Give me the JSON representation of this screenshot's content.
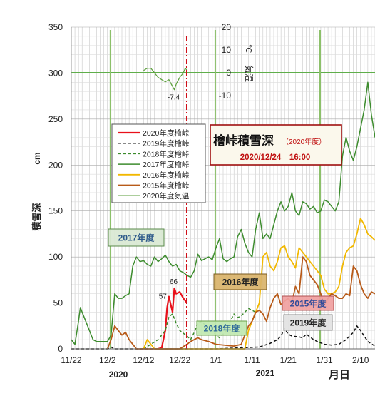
{
  "chart_data": {
    "type": "line",
    "title": "檜峠積雪深",
    "subtitle": "（2020年度）",
    "timestamp": "2020/12/24　16:00",
    "ylabel_primary": "積雪深",
    "ylabel_unit": "cm",
    "ylabel_secondary": "気温",
    "ylabel_secondary_unit": "℃",
    "xlabel": "月日",
    "year_labels": [
      "2020",
      "2021"
    ],
    "ylim": [
      0,
      350
    ],
    "y2lim": [
      -30,
      20
    ],
    "x_start_day": 0,
    "x_end_day": 84,
    "y_ticks": [
      "0",
      "50",
      "100",
      "150",
      "200",
      "250",
      "300",
      "350"
    ],
    "y2_ticks": [
      "20",
      "10",
      "0",
      "-10"
    ],
    "x_ticks": [
      {
        "label": "11/22",
        "day": 0
      },
      {
        "label": "12/2",
        "day": 10
      },
      {
        "label": "12/12",
        "day": 20
      },
      {
        "label": "12/22",
        "day": 30
      },
      {
        "label": "1/1",
        "day": 40
      },
      {
        "label": "1/11",
        "day": 50
      },
      {
        "label": "1/21",
        "day": 60
      },
      {
        "label": "1/31",
        "day": 70
      },
      {
        "label": "2/10",
        "day": 80
      }
    ],
    "current_day": 32,
    "year_markers": [
      "2017年度",
      "2016年度",
      "2015年度",
      "2018年度",
      "2019年度"
    ],
    "annotations": [
      "57",
      "66",
      "-7.4"
    ],
    "series": [
      {
        "name": "2020年度檜峠",
        "color": "#e8101a",
        "dash": "",
        "width": 2.2,
        "points": [
          [
            24,
            0
          ],
          [
            25,
            1
          ],
          [
            26,
            20
          ],
          [
            26.5,
            45
          ],
          [
            27,
            57
          ],
          [
            27.3,
            52
          ],
          [
            28,
            40
          ],
          [
            28.5,
            66
          ],
          [
            29,
            60
          ],
          [
            30,
            62
          ],
          [
            31,
            55
          ],
          [
            32,
            50
          ]
        ]
      },
      {
        "name": "2019年度檜峠",
        "color": "#111111",
        "dash": "4,3",
        "width": 1.5,
        "points": [
          [
            0,
            0
          ],
          [
            10,
            0
          ],
          [
            11,
            2
          ],
          [
            12,
            0
          ],
          [
            20,
            0
          ],
          [
            40,
            0
          ],
          [
            52,
            2
          ],
          [
            55,
            6
          ],
          [
            57,
            10
          ],
          [
            58,
            14
          ],
          [
            59,
            22
          ],
          [
            60,
            16
          ],
          [
            61,
            14
          ],
          [
            63,
            13
          ],
          [
            64,
            12
          ],
          [
            65,
            16
          ],
          [
            66,
            13
          ],
          [
            67,
            10
          ],
          [
            68,
            8
          ],
          [
            70,
            5
          ],
          [
            72,
            4
          ],
          [
            74,
            5
          ],
          [
            76,
            10
          ],
          [
            78,
            18
          ],
          [
            79,
            25
          ],
          [
            80,
            20
          ],
          [
            82,
            8
          ],
          [
            84,
            3
          ]
        ]
      },
      {
        "name": "2018年度檜峠",
        "color": "#3a8a2a",
        "dash": "4,3",
        "width": 1.5,
        "points": [
          [
            20,
            0
          ],
          [
            22,
            5
          ],
          [
            24,
            10
          ],
          [
            26,
            20
          ],
          [
            27,
            35
          ],
          [
            28,
            38
          ],
          [
            29,
            28
          ],
          [
            30,
            20
          ],
          [
            32,
            14
          ],
          [
            33,
            10
          ],
          [
            34,
            18
          ],
          [
            35,
            28
          ],
          [
            36,
            30
          ],
          [
            37,
            26
          ],
          [
            38,
            22
          ],
          [
            39,
            20
          ],
          [
            40,
            15
          ],
          [
            41,
            12
          ],
          [
            43,
            20
          ],
          [
            44,
            30
          ],
          [
            45,
            38
          ],
          [
            46,
            34
          ],
          [
            47,
            36
          ],
          [
            48,
            40
          ],
          [
            49,
            44
          ],
          [
            50,
            42
          ],
          [
            51,
            40
          ]
        ]
      },
      {
        "name": "2017年度檜峠",
        "color": "#3d8c2e",
        "dash": "",
        "width": 1.5,
        "points": [
          [
            0,
            10
          ],
          [
            1,
            5
          ],
          [
            2,
            30
          ],
          [
            2.5,
            45
          ],
          [
            3,
            40
          ],
          [
            4,
            30
          ],
          [
            5,
            20
          ],
          [
            6,
            10
          ],
          [
            7,
            8
          ],
          [
            9,
            8
          ],
          [
            10,
            8
          ],
          [
            11,
            15
          ],
          [
            12,
            60
          ],
          [
            13,
            55
          ],
          [
            14,
            55
          ],
          [
            15,
            58
          ],
          [
            16,
            60
          ],
          [
            17,
            90
          ],
          [
            18,
            100
          ],
          [
            19,
            95
          ],
          [
            20,
            96
          ],
          [
            21,
            92
          ],
          [
            22,
            90
          ],
          [
            23,
            100
          ],
          [
            24,
            95
          ],
          [
            25,
            98
          ],
          [
            26,
            102
          ],
          [
            27,
            95
          ],
          [
            28,
            90
          ],
          [
            29,
            92
          ],
          [
            30,
            85
          ],
          [
            31,
            83
          ],
          [
            32,
            80
          ],
          [
            33,
            78
          ],
          [
            34,
            85
          ],
          [
            35,
            103
          ],
          [
            36,
            96
          ],
          [
            37,
            98
          ],
          [
            38,
            100
          ],
          [
            39,
            97
          ],
          [
            40,
            110
          ],
          [
            41,
            120
          ],
          [
            42,
            98
          ],
          [
            43,
            95
          ],
          [
            44,
            98
          ],
          [
            45,
            100
          ],
          [
            46,
            122
          ],
          [
            47,
            130
          ],
          [
            48,
            115
          ],
          [
            49,
            105
          ],
          [
            50,
            100
          ],
          [
            51,
            130
          ],
          [
            52,
            148
          ],
          [
            53,
            120
          ],
          [
            54,
            125
          ],
          [
            55,
            120
          ],
          [
            56,
            135
          ],
          [
            57,
            150
          ],
          [
            58,
            160
          ],
          [
            59,
            150
          ],
          [
            60,
            155
          ],
          [
            61,
            170
          ],
          [
            62,
            150
          ],
          [
            63,
            145
          ],
          [
            64,
            160
          ],
          [
            65,
            158
          ],
          [
            66,
            152
          ],
          [
            67,
            155
          ],
          [
            68,
            148
          ],
          [
            69,
            150
          ],
          [
            70,
            162
          ],
          [
            71,
            160
          ],
          [
            72,
            155
          ],
          [
            73,
            150
          ],
          [
            74,
            160
          ],
          [
            75,
            210
          ],
          [
            76,
            230
          ],
          [
            77,
            215
          ],
          [
            78,
            205
          ],
          [
            79,
            220
          ],
          [
            80,
            240
          ],
          [
            81,
            260
          ],
          [
            82,
            290
          ],
          [
            83,
            255
          ],
          [
            84,
            230
          ]
        ]
      },
      {
        "name": "2016年度檜峠",
        "color": "#f2b800",
        "dash": "",
        "width": 1.8,
        "points": [
          [
            20,
            0
          ],
          [
            21,
            10
          ],
          [
            22,
            5
          ],
          [
            23,
            0
          ],
          [
            40,
            0
          ],
          [
            48,
            0
          ],
          [
            49,
            20
          ],
          [
            50,
            30
          ],
          [
            51,
            40
          ],
          [
            52,
            50
          ],
          [
            53,
            100
          ],
          [
            54,
            105
          ],
          [
            55,
            90
          ],
          [
            56,
            85
          ],
          [
            57,
            95
          ],
          [
            58,
            110
          ],
          [
            59,
            112
          ],
          [
            60,
            100
          ],
          [
            61,
            95
          ],
          [
            62,
            88
          ],
          [
            63,
            110
          ],
          [
            64,
            105
          ],
          [
            65,
            100
          ],
          [
            66,
            95
          ],
          [
            67,
            90
          ],
          [
            68,
            85
          ],
          [
            69,
            80
          ],
          [
            70,
            65
          ],
          [
            71,
            60
          ],
          [
            72,
            60
          ],
          [
            73,
            62
          ],
          [
            74,
            68
          ],
          [
            75,
            90
          ],
          [
            76,
            105
          ],
          [
            77,
            110
          ],
          [
            78,
            112
          ],
          [
            79,
            125
          ],
          [
            80,
            142
          ],
          [
            81,
            135
          ],
          [
            82,
            125
          ],
          [
            83,
            122
          ],
          [
            84,
            118
          ]
        ]
      },
      {
        "name": "2015年度檜峠",
        "color": "#b85a18",
        "dash": "",
        "width": 1.8,
        "points": [
          [
            10,
            0
          ],
          [
            11,
            10
          ],
          [
            12,
            25
          ],
          [
            13,
            20
          ],
          [
            14,
            15
          ],
          [
            15,
            18
          ],
          [
            16,
            10
          ],
          [
            17,
            5
          ],
          [
            18,
            0
          ],
          [
            30,
            0
          ],
          [
            32,
            5
          ],
          [
            33,
            8
          ],
          [
            34,
            10
          ],
          [
            35,
            12
          ],
          [
            36,
            10
          ],
          [
            38,
            8
          ],
          [
            40,
            5
          ],
          [
            45,
            3
          ],
          [
            47,
            5
          ],
          [
            48,
            15
          ],
          [
            49,
            25
          ],
          [
            50,
            30
          ],
          [
            51,
            40
          ],
          [
            52,
            42
          ],
          [
            53,
            38
          ],
          [
            54,
            30
          ],
          [
            55,
            45
          ],
          [
            56,
            55
          ],
          [
            57,
            60
          ],
          [
            58,
            48
          ],
          [
            59,
            52
          ],
          [
            60,
            55
          ],
          [
            61,
            50
          ],
          [
            62,
            68
          ],
          [
            63,
            60
          ],
          [
            64,
            100
          ],
          [
            65,
            95
          ],
          [
            66,
            80
          ],
          [
            67,
            75
          ],
          [
            68,
            70
          ],
          [
            69,
            60
          ],
          [
            70,
            48
          ],
          [
            71,
            55
          ],
          [
            72,
            60
          ],
          [
            73,
            58
          ],
          [
            74,
            55
          ],
          [
            75,
            55
          ],
          [
            76,
            60
          ],
          [
            77,
            58
          ],
          [
            78,
            90
          ],
          [
            79,
            85
          ],
          [
            80,
            70
          ],
          [
            81,
            60
          ],
          [
            82,
            55
          ],
          [
            83,
            62
          ],
          [
            84,
            60
          ]
        ]
      },
      {
        "name": "2020年度気温",
        "color": "#5a9e3a",
        "dash": "",
        "width": 1.2,
        "axis": "secondary",
        "points": [
          [
            20,
            1
          ],
          [
            21,
            2
          ],
          [
            22,
            2
          ],
          [
            23,
            0
          ],
          [
            24,
            -2
          ],
          [
            25,
            -3
          ],
          [
            26,
            -4
          ],
          [
            27,
            -3
          ],
          [
            28,
            -6
          ],
          [
            28.5,
            -7.4
          ],
          [
            29,
            -5
          ],
          [
            30,
            -2
          ],
          [
            30.5,
            -1
          ],
          [
            31,
            0
          ],
          [
            31.5,
            2
          ],
          [
            32,
            1
          ]
        ]
      }
    ],
    "legend_position": "upper-left",
    "grid": true
  }
}
